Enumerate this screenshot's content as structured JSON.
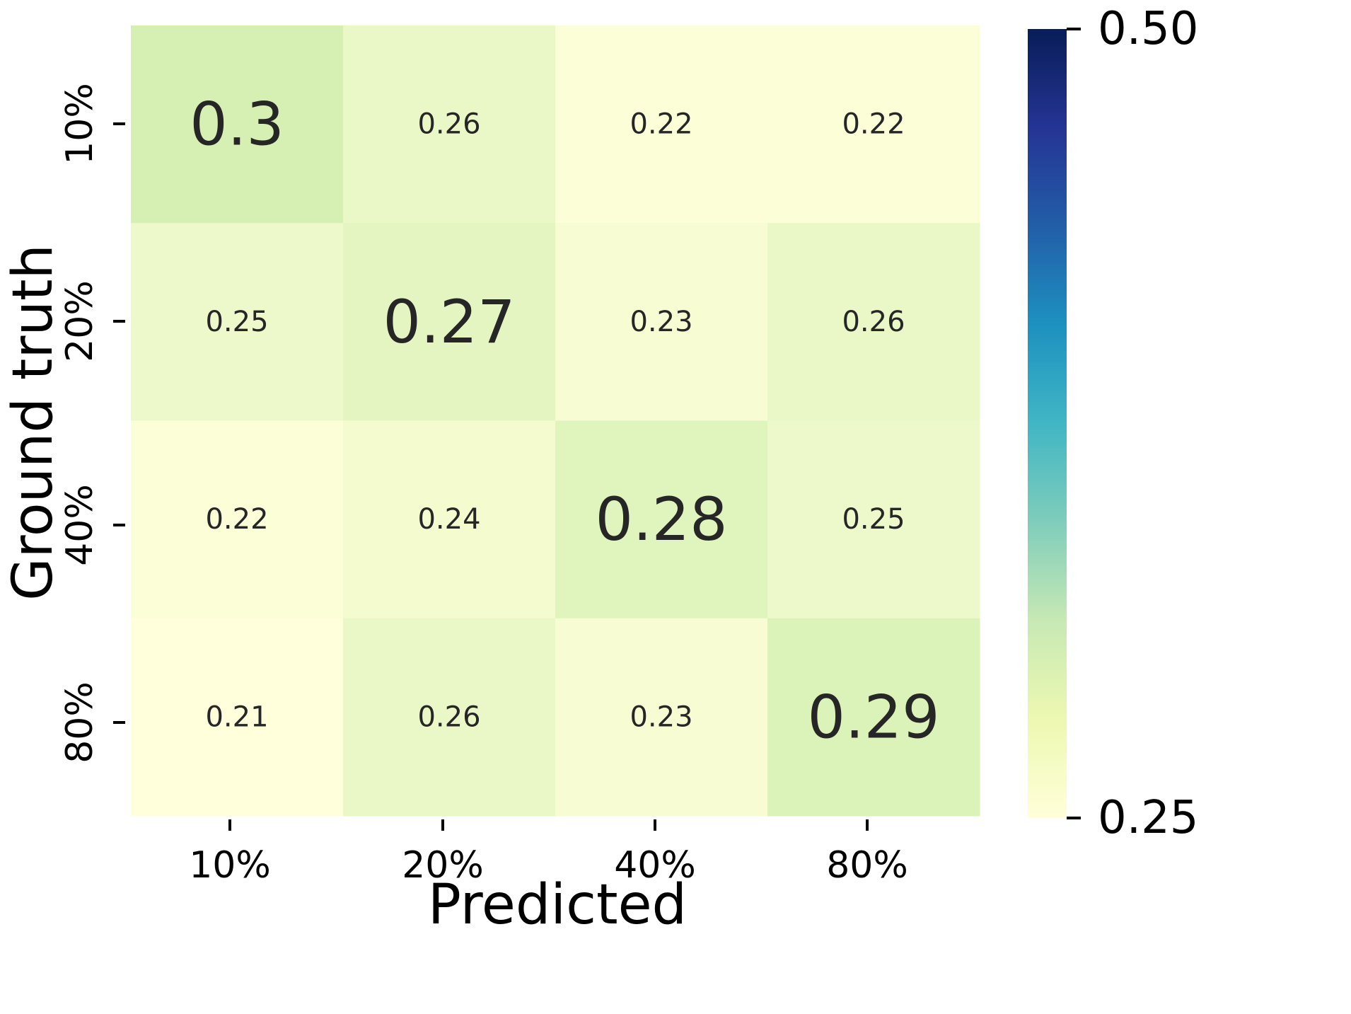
{
  "chart_data": {
    "type": "heatmap",
    "title": "",
    "xlabel": "Predicted",
    "ylabel": "Ground truth",
    "x_categories": [
      "10%",
      "20%",
      "40%",
      "80%"
    ],
    "y_categories": [
      "10%",
      "20%",
      "40%",
      "80%"
    ],
    "values": [
      [
        0.3,
        0.26,
        0.22,
        0.22
      ],
      [
        0.25,
        0.27,
        0.23,
        0.26
      ],
      [
        0.22,
        0.24,
        0.28,
        0.25
      ],
      [
        0.21,
        0.26,
        0.23,
        0.29
      ]
    ],
    "value_labels": [
      [
        "0.3",
        "0.26",
        "0.22",
        "0.22"
      ],
      [
        "0.25",
        "0.27",
        "0.23",
        "0.26"
      ],
      [
        "0.22",
        "0.24",
        "0.28",
        "0.25"
      ],
      [
        "0.21",
        "0.26",
        "0.23",
        "0.29"
      ]
    ],
    "diagonal_emphasized": true,
    "colormap": "YlGnBu",
    "colorbar": {
      "vmin": 0.25,
      "vmax": 0.5,
      "tick_labels": [
        "0.50",
        "0.25"
      ],
      "ticks": [
        0.5,
        0.25
      ]
    },
    "colorbar_stops": [
      "#ffffd9",
      "#edf8b1",
      "#c7e9b4",
      "#7fcdbb",
      "#41b6c4",
      "#1d91c0",
      "#225ea8",
      "#253494",
      "#081d58"
    ]
  }
}
